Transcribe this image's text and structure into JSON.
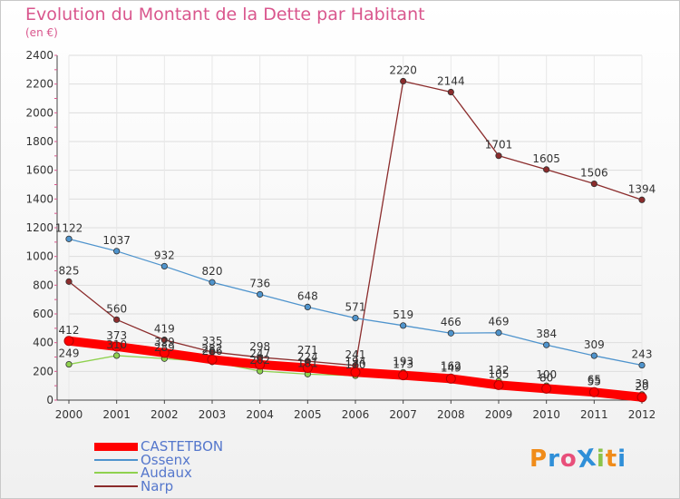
{
  "title": "Evolution du Montant de la Dette par Habitant",
  "unit_label": "(en €)",
  "logo": {
    "text": "ProXiti",
    "colors": [
      "#f08c1a",
      "#2f8fd8",
      "#e84f7a",
      "#2f8fd8",
      "#8bc34a",
      "#f08c1a",
      "#2f8fd8"
    ]
  },
  "chart_data": {
    "type": "line",
    "title": "Evolution du Montant de la Dette par Habitant",
    "ylabel": "(en €)",
    "xlabel": "",
    "ylim": [
      0,
      2400
    ],
    "yticks": [
      0,
      200,
      400,
      600,
      800,
      1000,
      1200,
      1400,
      1600,
      1800,
      2000,
      2200,
      2400
    ],
    "categories": [
      "2000",
      "2001",
      "2002",
      "2003",
      "2004",
      "2005",
      "2006",
      "2007",
      "2008",
      "2009",
      "2010",
      "2011",
      "2012"
    ],
    "grid": true,
    "legend_position": "bottom-left",
    "series": [
      {
        "name": "CASTETBON",
        "color": "#ff0000",
        "values": [
          412,
          373,
          329,
          282,
          247,
          224,
          194,
          173,
          149,
          105,
          80,
          55,
          20
        ]
      },
      {
        "name": "Ossenx",
        "color": "#4f94cd",
        "values": [
          1122,
          1037,
          932,
          820,
          736,
          648,
          571,
          519,
          466,
          469,
          384,
          309,
          243
        ]
      },
      {
        "name": "Audaux",
        "color": "#8fd14f",
        "values": [
          249,
          310,
          289,
          266,
          202,
          181,
          170,
          193,
          162,
          132,
          100,
          65,
          39
        ]
      },
      {
        "name": "Narp",
        "color": "#8b2c2c",
        "values": [
          825,
          560,
          419,
          335,
          298,
          271,
          241,
          2220,
          2144,
          1701,
          1605,
          1506,
          1394
        ]
      }
    ]
  }
}
